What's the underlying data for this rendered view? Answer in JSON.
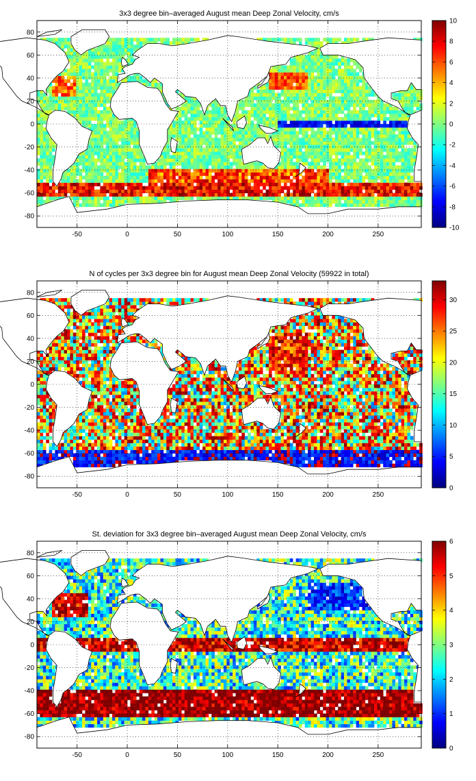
{
  "chart_data": [
    {
      "type": "heatmap",
      "title": "3x3 degree bin–averaged August mean Deep Zonal Velocity, cm/s",
      "xlabel": "",
      "ylabel": "",
      "xlim": [
        -90,
        293
      ],
      "ylim": [
        -90,
        90
      ],
      "xticks": [
        -50,
        0,
        50,
        100,
        150,
        200,
        250
      ],
      "yticks": [
        80,
        60,
        40,
        20,
        0,
        -20,
        -40,
        -60,
        -80
      ],
      "colorbar": {
        "min": -10,
        "max": 10,
        "ticks": [
          10,
          8,
          6,
          4,
          2,
          0,
          -2,
          -4,
          -6,
          -8,
          -10
        ],
        "colormap": "jet"
      },
      "grid": true,
      "bin_size_deg": 3,
      "features": [
        {
          "name": "Antarctic Circumpolar Current band",
          "lat": [
            -62,
            -42
          ],
          "value": 7
        },
        {
          "name": "Equatorial Pacific westward band",
          "lat": [
            -3,
            3
          ],
          "value": -8
        },
        {
          "name": "Typical interior",
          "value": 0
        }
      ]
    },
    {
      "type": "heatmap",
      "title": "N of cycles per 3x3 degree bin for August mean Deep Zonal Velocity (59922 in total)",
      "xlabel": "",
      "ylabel": "",
      "xlim": [
        -90,
        293
      ],
      "ylim": [
        -90,
        90
      ],
      "xticks": [
        -50,
        0,
        50,
        100,
        150,
        200,
        250
      ],
      "yticks": [
        80,
        60,
        40,
        20,
        0,
        -20,
        -40,
        -60,
        -80
      ],
      "colorbar": {
        "min": 0,
        "max": 33,
        "ticks": [
          30,
          25,
          20,
          15,
          10,
          5,
          0
        ],
        "colormap": "jet"
      },
      "grid": true,
      "total_cycles": 59922,
      "features": [
        {
          "name": "NW Pacific high density",
          "value": 30
        },
        {
          "name": "Southern Ocean sparse",
          "lat": [
            -66,
            -58
          ],
          "value": 4
        }
      ]
    },
    {
      "type": "heatmap",
      "title": "St. deviation for 3x3 degree bin–averaged August mean Deep Zonal Velocity, cm/s",
      "xlabel": "",
      "ylabel": "",
      "xlim": [
        -90,
        293
      ],
      "ylim": [
        -90,
        90
      ],
      "xticks": [
        -50,
        0,
        50,
        100,
        150,
        200,
        250
      ],
      "yticks": [
        80,
        60,
        40,
        20,
        0,
        -20,
        -40,
        -60,
        -80
      ],
      "colorbar": {
        "min": 0,
        "max": 6,
        "ticks": [
          6,
          5,
          4,
          3,
          2,
          1,
          0
        ],
        "colormap": "jet"
      },
      "grid": true,
      "features": [
        {
          "name": "Southern Ocean high variability",
          "lat": [
            -62,
            -40
          ],
          "value": 6
        },
        {
          "name": "Equatorial high variability",
          "lat": [
            -6,
            6
          ],
          "value": 6
        },
        {
          "name": "NE Pacific low variability",
          "value": 1
        }
      ]
    }
  ]
}
